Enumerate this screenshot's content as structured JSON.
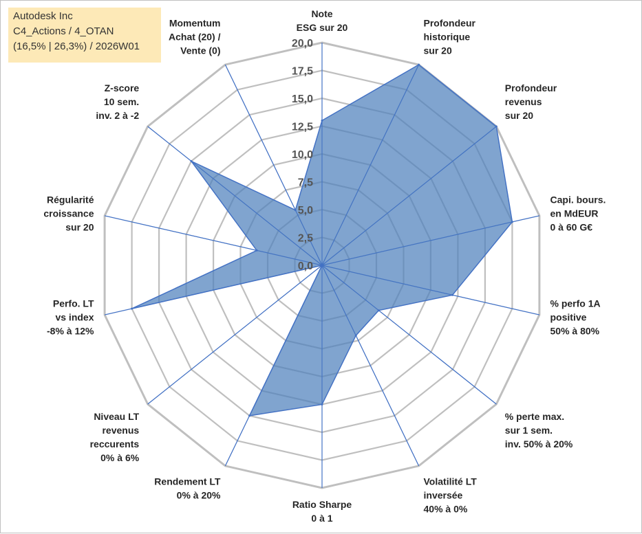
{
  "info_box": {
    "line1": "Autodesk Inc",
    "line2": "C4_Actions / 4_OTAN",
    "line3": "(16,5% | 26,3%) / 2026W01"
  },
  "colors": {
    "fill": "#4f81bd",
    "stroke": "#4472c4",
    "grid": "#bfbfbf",
    "spoke": "#4472c4"
  },
  "chart_data": {
    "type": "radar",
    "title": "",
    "range": [
      0,
      20
    ],
    "grid": true,
    "tick_labels": [
      "0,0",
      "2,5",
      "5,0",
      "7,5",
      "10,0",
      "12,5",
      "15,0",
      "17,5",
      "20,0"
    ],
    "categories": [
      "Note\nESG sur 20",
      "Profondeur\nhistorique\nsur 20",
      "Profondeur\nrevenus\nsur 20",
      "Capi. bours.\nen MdEUR\n0 à 60 G€",
      "% perfo 1A\npositive\n50% à 80%",
      "% perte max.\nsur 1 sem.\ninv. 50% à 20%",
      "Volatilité LT\ninversée\n40% à 0%",
      "Ratio Sharpe\n0 à 1",
      "Rendement LT\n0% à 20%",
      "Niveau LT\nrevenus\nreccurents\n0% à 6%",
      "Perfo. LT\nvs index\n-8% à 12%",
      "Régularité\ncroissance\nsur 20",
      "Z-score\n10 sem.\ninv. 2 à -2",
      "Momentum\nAchat (20) /\nVente (0)"
    ],
    "series": [
      {
        "name": "Autodesk Inc",
        "values": [
          13.0,
          20.0,
          20.0,
          17.5,
          12.0,
          6.5,
          7.0,
          12.5,
          15.0,
          0.0,
          17.5,
          6.0,
          15.0,
          5.5
        ]
      }
    ]
  }
}
